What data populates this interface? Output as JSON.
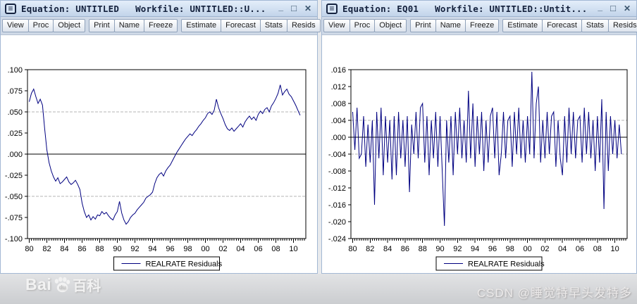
{
  "chrome": {
    "system_icon_glyph": "≡",
    "minimize_glyph": "_",
    "maximize_glyph": "□",
    "close_glyph": "✕"
  },
  "windows": [
    {
      "title_equation": "Equation: UNTITLED",
      "title_workfile": "Workfile: UNTITLED::U...",
      "toolbar_groups": [
        [
          "View",
          "Proc",
          "Object"
        ],
        [
          "Print",
          "Name",
          "Freeze"
        ],
        [
          "Estimate",
          "Forecast",
          "Stats",
          "Resids"
        ]
      ]
    },
    {
      "title_equation": "Equation: EQ01",
      "title_workfile": "Workfile: UNTITLED::Untit...",
      "toolbar_groups": [
        [
          "View",
          "Proc",
          "Object"
        ],
        [
          "Print",
          "Name",
          "Freeze"
        ],
        [
          "Estimate",
          "Forecast",
          "Stats",
          "Resids"
        ]
      ]
    }
  ],
  "watermarks": {
    "baidu_bai": "Bai",
    "baidu_du": "du",
    "baidu_ke": "百科",
    "csdn": "CSDN @睡觉特早头发特多"
  },
  "chart_data": [
    {
      "type": "line",
      "legend": "REALRATE Residuals",
      "line_color": "#000080",
      "ylim": [
        -0.1,
        0.1
      ],
      "ytick_values": [
        0.1,
        0.075,
        0.05,
        0.025,
        0,
        -0.025,
        -0.05,
        -0.075,
        -0.1
      ],
      "ytick_labels": [
        ".100",
        ".075",
        ".050",
        ".025",
        ".000",
        "-.025",
        "-.050",
        "-.075",
        "-.100"
      ],
      "dashed_gridlines": [
        0.05,
        -0.05
      ],
      "zero_line": 0,
      "x_range": [
        1979.8,
        2011.4
      ],
      "xtick_years": [
        1980,
        1982,
        1984,
        1986,
        1988,
        1990,
        1992,
        1994,
        1996,
        1998,
        2000,
        2002,
        2004,
        2006,
        2008,
        2010
      ],
      "xtick_labels": [
        "80",
        "82",
        "84",
        "86",
        "88",
        "90",
        "92",
        "94",
        "96",
        "98",
        "00",
        "02",
        "04",
        "06",
        "08",
        "10"
      ],
      "x_start": 1980.0,
      "x_step": 0.25,
      "values": [
        0.062,
        0.072,
        0.077,
        0.068,
        0.06,
        0.065,
        0.058,
        0.03,
        0.005,
        -0.01,
        -0.02,
        -0.027,
        -0.032,
        -0.028,
        -0.035,
        -0.033,
        -0.03,
        -0.027,
        -0.033,
        -0.036,
        -0.034,
        -0.031,
        -0.036,
        -0.042,
        -0.058,
        -0.068,
        -0.075,
        -0.072,
        -0.078,
        -0.074,
        -0.077,
        -0.072,
        -0.073,
        -0.068,
        -0.071,
        -0.069,
        -0.073,
        -0.076,
        -0.078,
        -0.072,
        -0.068,
        -0.056,
        -0.07,
        -0.078,
        -0.083,
        -0.08,
        -0.075,
        -0.072,
        -0.07,
        -0.066,
        -0.063,
        -0.06,
        -0.057,
        -0.052,
        -0.05,
        -0.048,
        -0.045,
        -0.035,
        -0.028,
        -0.024,
        -0.022,
        -0.026,
        -0.02,
        -0.016,
        -0.013,
        -0.008,
        -0.003,
        0.002,
        0.006,
        0.01,
        0.014,
        0.018,
        0.021,
        0.024,
        0.022,
        0.026,
        0.029,
        0.033,
        0.036,
        0.04,
        0.043,
        0.048,
        0.05,
        0.047,
        0.052,
        0.065,
        0.055,
        0.048,
        0.042,
        0.035,
        0.03,
        0.028,
        0.031,
        0.027,
        0.03,
        0.033,
        0.036,
        0.032,
        0.038,
        0.042,
        0.045,
        0.041,
        0.044,
        0.04,
        0.047,
        0.051,
        0.048,
        0.053,
        0.055,
        0.05,
        0.057,
        0.061,
        0.066,
        0.072,
        0.082,
        0.07,
        0.074,
        0.077,
        0.071,
        0.068,
        0.063,
        0.058,
        0.052,
        0.046
      ]
    },
    {
      "type": "line",
      "legend": "REALRATE Residuals",
      "line_color": "#000080",
      "ylim": [
        -0.024,
        0.016
      ],
      "ytick_values": [
        0.016,
        0.012,
        0.008,
        0.004,
        0,
        -0.004,
        -0.008,
        -0.012,
        -0.016,
        -0.02,
        -0.024
      ],
      "ytick_labels": [
        ".016",
        ".012",
        ".008",
        ".004",
        ".000",
        "-.004",
        "-.008",
        "-.012",
        "-.016",
        "-.020",
        "-.024"
      ],
      "dashed_gridlines": [
        0.004,
        -0.004
      ],
      "zero_line": 0,
      "x_range": [
        1979.8,
        2011.4
      ],
      "xtick_years": [
        1980,
        1982,
        1984,
        1986,
        1988,
        1990,
        1992,
        1994,
        1996,
        1998,
        2000,
        2002,
        2004,
        2006,
        2008,
        2010
      ],
      "xtick_labels": [
        "80",
        "82",
        "84",
        "86",
        "88",
        "90",
        "92",
        "94",
        "96",
        "98",
        "00",
        "02",
        "04",
        "06",
        "08",
        "10"
      ],
      "x_start": 1980.0,
      "x_step": 0.25,
      "values": [
        0.006,
        -0.003,
        0.007,
        -0.005,
        -0.004,
        0.005,
        -0.007,
        0.003,
        -0.006,
        0.004,
        -0.016,
        0.006,
        -0.005,
        0.007,
        -0.009,
        0.005,
        -0.006,
        0.004,
        -0.01,
        0.005,
        -0.009,
        0.006,
        -0.005,
        0.004,
        -0.007,
        0.005,
        -0.013,
        0.003,
        -0.004,
        0.006,
        -0.005,
        0.007,
        0.008,
        -0.006,
        0.005,
        -0.009,
        0.004,
        -0.005,
        0.006,
        -0.007,
        0.005,
        -0.008,
        -0.021,
        0.004,
        -0.006,
        0.005,
        -0.009,
        0.006,
        -0.004,
        0.007,
        -0.005,
        0.004,
        -0.006,
        0.011,
        -0.005,
        0.008,
        -0.007,
        0.005,
        -0.004,
        0.006,
        -0.008,
        0.004,
        -0.006,
        0.005,
        0.007,
        -0.005,
        0.006,
        -0.009,
        -0.004,
        0.006,
        -0.005,
        0.004,
        0.005,
        -0.007,
        0.006,
        -0.004,
        0.007,
        -0.005,
        0.004,
        -0.006,
        0.005,
        -0.004,
        0.0155,
        -0.005,
        0.008,
        0.012,
        -0.006,
        0.004,
        -0.005,
        0.006,
        -0.004,
        0.005,
        0.006,
        -0.007,
        0.004,
        -0.005,
        -0.009,
        0.005,
        -0.006,
        0.007,
        -0.004,
        0.006,
        -0.005,
        0.004,
        0.005,
        -0.006,
        0.007,
        -0.004,
        0.006,
        -0.005,
        0.004,
        -0.008,
        0.005,
        -0.006,
        0.009,
        -0.017,
        0.006,
        -0.008,
        0.005,
        -0.004,
        0.004,
        -0.005,
        0.003,
        -0.004
      ]
    }
  ]
}
